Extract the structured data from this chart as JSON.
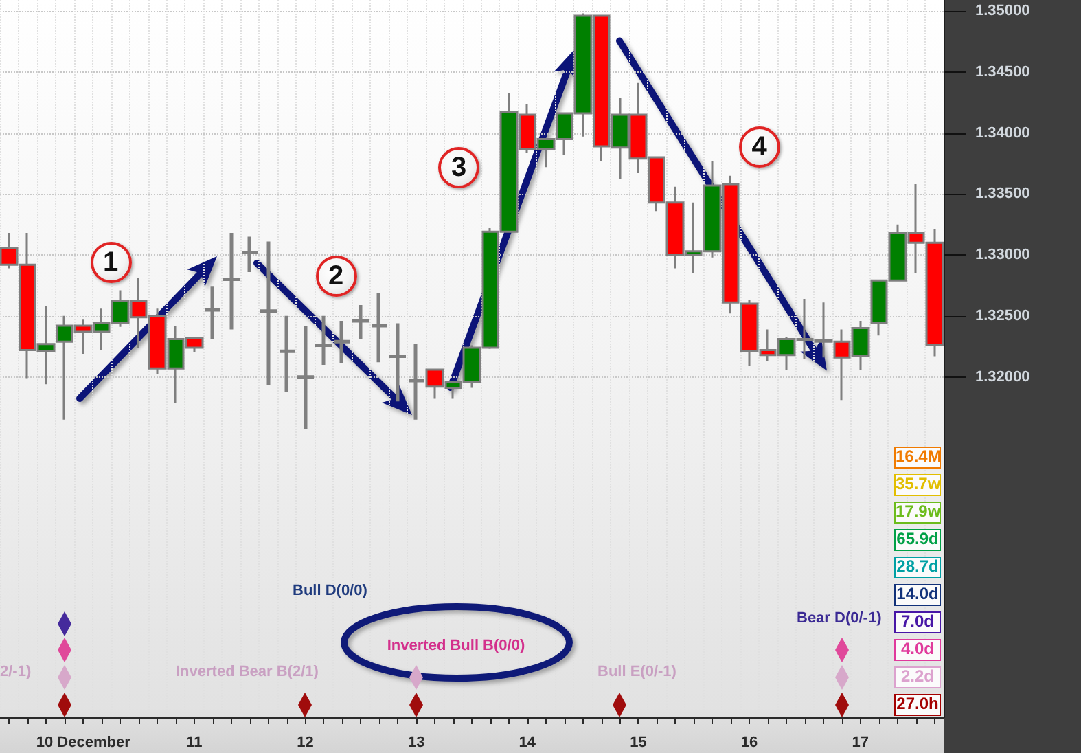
{
  "chart_data": {
    "type": "candlestick",
    "categories": [
      null,
      null,
      null,
      null,
      "10 December",
      null,
      null,
      null,
      null,
      null,
      "11",
      null,
      null,
      null,
      null,
      null,
      "12",
      null,
      null,
      null,
      null,
      null,
      "13",
      null,
      null,
      null,
      null,
      null,
      "14",
      null,
      null,
      null,
      null,
      null,
      "15",
      null,
      null,
      null,
      null,
      null,
      "16",
      null,
      null,
      null,
      null,
      null,
      "17",
      null,
      null,
      null,
      null
    ],
    "ohlc": [
      [
        1.3306,
        1.3318,
        1.3289,
        1.3292
      ],
      [
        1.3292,
        1.3318,
        1.3199,
        1.3222
      ],
      [
        1.3221,
        1.3258,
        1.3194,
        1.3227
      ],
      [
        1.3229,
        1.325,
        1.3165,
        1.3242
      ],
      [
        1.3242,
        1.3247,
        1.3219,
        1.3237
      ],
      [
        1.3237,
        1.3256,
        1.3222,
        1.3244
      ],
      [
        1.3244,
        1.3271,
        1.3241,
        1.3262
      ],
      [
        1.3262,
        1.3281,
        1.3224,
        1.3249
      ],
      [
        1.325,
        1.3256,
        1.3202,
        1.3207
      ],
      [
        1.3207,
        1.3242,
        1.3179,
        1.3231
      ],
      [
        1.3232,
        1.3233,
        1.322,
        1.3224
      ],
      [
        1.3255,
        1.3274,
        1.3231,
        1.3255
      ],
      [
        1.328,
        1.3318,
        1.3239,
        1.328
      ],
      [
        1.3302,
        1.3315,
        1.3286,
        1.3302
      ],
      [
        1.3254,
        1.3311,
        1.3193,
        1.3254
      ],
      [
        1.3221,
        1.325,
        1.3188,
        1.3221
      ],
      [
        1.32,
        1.3242,
        1.3157,
        1.32
      ],
      [
        1.3226,
        1.325,
        1.321,
        1.3226
      ],
      [
        1.3229,
        1.3246,
        1.3211,
        1.3229
      ],
      [
        1.3246,
        1.3259,
        1.3231,
        1.3246
      ],
      [
        1.3242,
        1.3269,
        1.3212,
        1.3242
      ],
      [
        1.3217,
        1.3244,
        1.318,
        1.3217
      ],
      [
        1.3197,
        1.3227,
        1.3165,
        1.3197
      ],
      [
        1.3206,
        1.3206,
        1.3182,
        1.3192
      ],
      [
        1.3191,
        1.3196,
        1.3182,
        1.3196
      ],
      [
        1.3196,
        1.3226,
        1.3191,
        1.3224
      ],
      [
        1.3224,
        1.3322,
        1.3223,
        1.3319
      ],
      [
        1.3319,
        1.3433,
        1.3319,
        1.3417
      ],
      [
        1.3415,
        1.3424,
        1.3384,
        1.3387
      ],
      [
        1.3387,
        1.3395,
        1.3372,
        1.3395
      ],
      [
        1.3395,
        1.3416,
        1.3382,
        1.3416
      ],
      [
        1.3416,
        1.3498,
        1.3397,
        1.3496
      ],
      [
        1.3496,
        1.3496,
        1.3377,
        1.3389
      ],
      [
        1.3388,
        1.3429,
        1.3362,
        1.3415
      ],
      [
        1.3415,
        1.3441,
        1.3367,
        1.3379
      ],
      [
        1.338,
        1.338,
        1.3336,
        1.3343
      ],
      [
        1.3343,
        1.3356,
        1.3289,
        1.33
      ],
      [
        1.33,
        1.3343,
        1.3285,
        1.3303
      ],
      [
        1.3303,
        1.3377,
        1.3298,
        1.3357
      ],
      [
        1.3358,
        1.3365,
        1.3252,
        1.3261
      ],
      [
        1.326,
        1.3263,
        1.3209,
        1.3221
      ],
      [
        1.3222,
        1.3239,
        1.3213,
        1.3218
      ],
      [
        1.3218,
        1.3233,
        1.3206,
        1.3231
      ],
      [
        1.3231,
        1.3264,
        1.3215,
        1.323
      ],
      [
        1.3229,
        1.3261,
        1.3216,
        1.323
      ],
      [
        1.3229,
        1.3239,
        1.3181,
        1.3216
      ],
      [
        1.3217,
        1.3246,
        1.3206,
        1.324
      ],
      [
        1.3244,
        1.3279,
        1.3234,
        1.3279
      ],
      [
        1.3279,
        1.3325,
        1.3279,
        1.3318
      ],
      [
        1.3318,
        1.3358,
        1.3285,
        1.331
      ],
      [
        1.331,
        1.3321,
        1.3217,
        1.3226
      ]
    ],
    "colors": [
      "#ff0000",
      "#ff0000",
      "#008000",
      "#008000",
      "#ff0000",
      "#008000",
      "#008000",
      "#ff0000",
      "#ff0000",
      "#008000",
      "#ff0000",
      "#808080",
      "#808080",
      "#808080",
      "#808080",
      "#808080",
      "#808080",
      "#808080",
      "#808080",
      "#808080",
      "#808080",
      "#808080",
      "#808080",
      "#ff0000",
      "#008000",
      "#008000",
      "#008000",
      "#008000",
      "#ff0000",
      "#008000",
      "#008000",
      "#008000",
      "#ff0000",
      "#008000",
      "#ff0000",
      "#ff0000",
      "#ff0000",
      "#008000",
      "#008000",
      "#ff0000",
      "#ff0000",
      "#ff0000",
      "#008000",
      "#ff0000",
      "#008000",
      "#ff0000",
      "#008000",
      "#008000",
      "#008000",
      "#ff0000",
      "#ff0000"
    ],
    "ylim": [
      1.2921,
      1.3509
    ],
    "yticks": [
      {
        "value": 1.32,
        "label": "1.32000"
      },
      {
        "value": 1.325,
        "label": "1.32500"
      },
      {
        "value": 1.33,
        "label": "1.33000"
      },
      {
        "value": 1.335,
        "label": "1.33500"
      },
      {
        "value": 1.34,
        "label": "1.34000"
      },
      {
        "value": 1.345,
        "label": "1.34500"
      },
      {
        "value": 1.35,
        "label": "1.35000"
      }
    ],
    "grid": true,
    "annotations": [
      "1",
      "2",
      "3",
      "4",
      "Bull D(0/0)",
      "Bear D(0/-1)",
      "Inverted Bull B(0/0)",
      "2/-1)",
      "Inverted Bear B(2/1)",
      "Bull E(0/-1)",
      "16.4M",
      "35.7w",
      "17.9w",
      "65.9d",
      "28.7d",
      "14.0d",
      "7.0d",
      "4.0d",
      "2.2d",
      "27.0h"
    ]
  }
}
